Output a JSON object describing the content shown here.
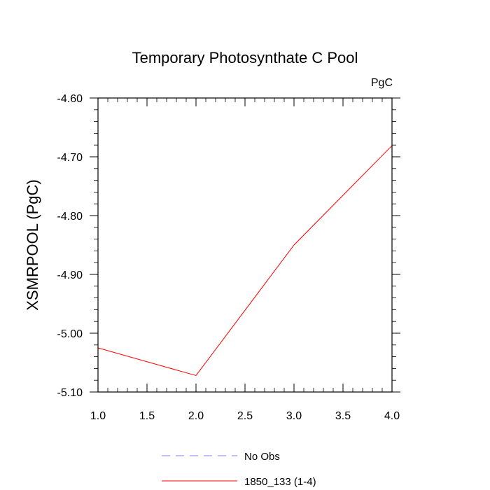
{
  "chart_data": {
    "type": "line",
    "title": "Temporary Photosynthate C Pool",
    "units_label": "PgC",
    "ylabel": "XSMRPOOL  (PgC)",
    "xlabel": "",
    "xlim": [
      1.0,
      4.0
    ],
    "ylim": [
      -5.1,
      -4.6
    ],
    "x_ticks": [
      "1.0",
      "1.5",
      "2.0",
      "2.5",
      "3.0",
      "3.5",
      "4.0"
    ],
    "y_ticks": [
      "-4.60",
      "-4.70",
      "-4.80",
      "-4.90",
      "-5.00",
      "-5.10"
    ],
    "grid": false,
    "legend_position": "bottom",
    "series": [
      {
        "name": "No Obs",
        "color": "#8080ff",
        "dash": "dashed",
        "x": [],
        "y": []
      },
      {
        "name": "1850_133 (1-4)",
        "color": "#ff0000",
        "dash": "solid",
        "x": [
          1.0,
          2.0,
          3.0,
          4.0
        ],
        "y": [
          -5.025,
          -5.072,
          -4.85,
          -4.681
        ]
      }
    ]
  }
}
